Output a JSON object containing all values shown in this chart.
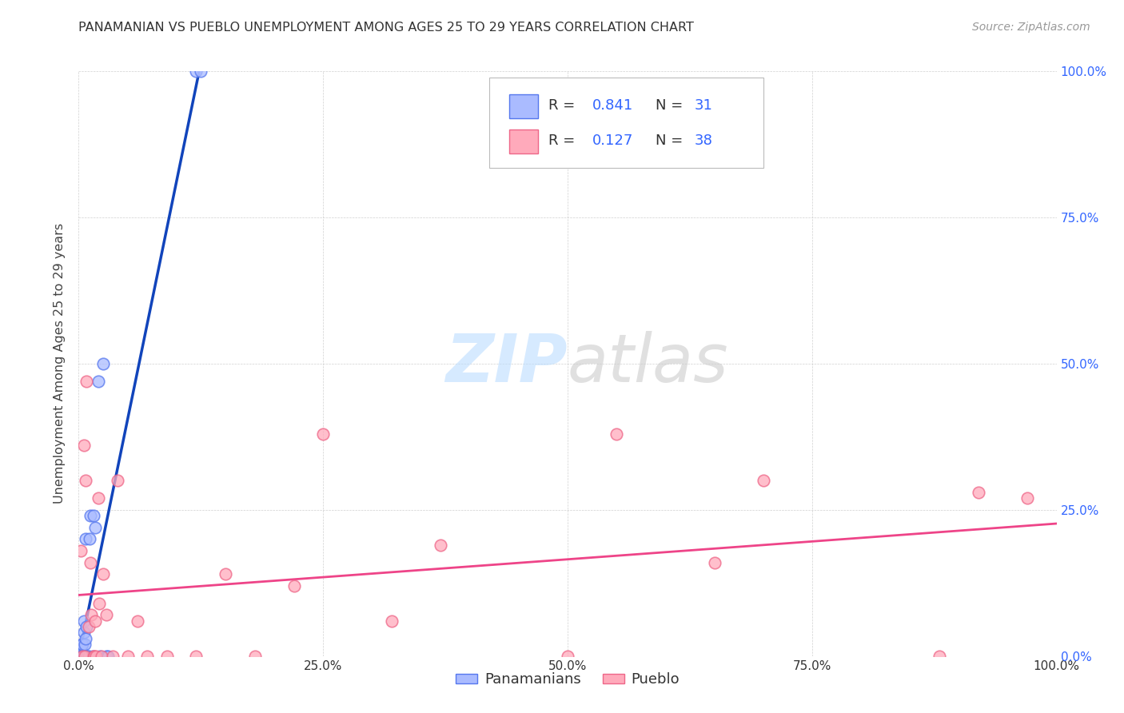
{
  "title": "PANAMANIAN VS PUEBLO UNEMPLOYMENT AMONG AGES 25 TO 29 YEARS CORRELATION CHART",
  "source": "Source: ZipAtlas.com",
  "ylabel": "Unemployment Among Ages 25 to 29 years",
  "xlim": [
    0,
    1.0
  ],
  "ylim": [
    0,
    1.0
  ],
  "xticks": [
    0.0,
    0.25,
    0.5,
    0.75,
    1.0
  ],
  "yticks": [
    0.0,
    0.25,
    0.5,
    0.75,
    1.0
  ],
  "xtick_labels": [
    "0.0%",
    "25.0%",
    "50.0%",
    "75.0%",
    "100.0%"
  ],
  "ytick_labels": [
    "0.0%",
    "25.0%",
    "50.0%",
    "75.0%",
    "100.0%"
  ],
  "panamanian_color": "#aabbff",
  "pueblo_color": "#ffaabb",
  "panamanian_edge": "#5577ee",
  "pueblo_edge": "#ee6688",
  "trend_blue": "#1144bb",
  "trend_pink": "#ee4488",
  "R_pan": 0.841,
  "N_pan": 31,
  "R_pue": 0.127,
  "N_pue": 38,
  "legend_label_pan": "Panamanians",
  "legend_label_pue": "Pueblo",
  "watermark_color_ZIP": "#bbddff",
  "watermark_color_atlas": "#cccccc",
  "label_color_blue": "#3366ff",
  "tick_color_right": "#3366ff",
  "panamanian_x": [
    0.002,
    0.002,
    0.003,
    0.003,
    0.003,
    0.004,
    0.004,
    0.004,
    0.005,
    0.005,
    0.005,
    0.006,
    0.006,
    0.007,
    0.007,
    0.008,
    0.008,
    0.009,
    0.01,
    0.011,
    0.012,
    0.014,
    0.015,
    0.017,
    0.02,
    0.022,
    0.025,
    0.028,
    0.03,
    0.12,
    0.125
  ],
  "panamanian_y": [
    0.0,
    0.01,
    0.0,
    0.0,
    0.02,
    0.0,
    0.0,
    0.02,
    0.0,
    0.04,
    0.06,
    0.0,
    0.02,
    0.03,
    0.2,
    0.0,
    0.05,
    0.0,
    0.0,
    0.2,
    0.24,
    0.0,
    0.24,
    0.22,
    0.47,
    0.0,
    0.5,
    0.0,
    0.0,
    1.0,
    1.0
  ],
  "pueblo_x": [
    0.002,
    0.004,
    0.005,
    0.006,
    0.007,
    0.008,
    0.01,
    0.012,
    0.013,
    0.015,
    0.016,
    0.017,
    0.018,
    0.02,
    0.021,
    0.023,
    0.025,
    0.028,
    0.035,
    0.04,
    0.05,
    0.06,
    0.07,
    0.09,
    0.12,
    0.15,
    0.18,
    0.22,
    0.25,
    0.32,
    0.37,
    0.5,
    0.55,
    0.65,
    0.7,
    0.88,
    0.92,
    0.97
  ],
  "pueblo_y": [
    0.18,
    0.0,
    0.36,
    0.0,
    0.3,
    0.47,
    0.05,
    0.16,
    0.07,
    0.0,
    0.0,
    0.06,
    0.0,
    0.27,
    0.09,
    0.0,
    0.14,
    0.07,
    0.0,
    0.3,
    0.0,
    0.06,
    0.0,
    0.0,
    0.0,
    0.14,
    0.0,
    0.12,
    0.38,
    0.06,
    0.19,
    0.0,
    0.38,
    0.16,
    0.3,
    0.0,
    0.28,
    0.27
  ]
}
